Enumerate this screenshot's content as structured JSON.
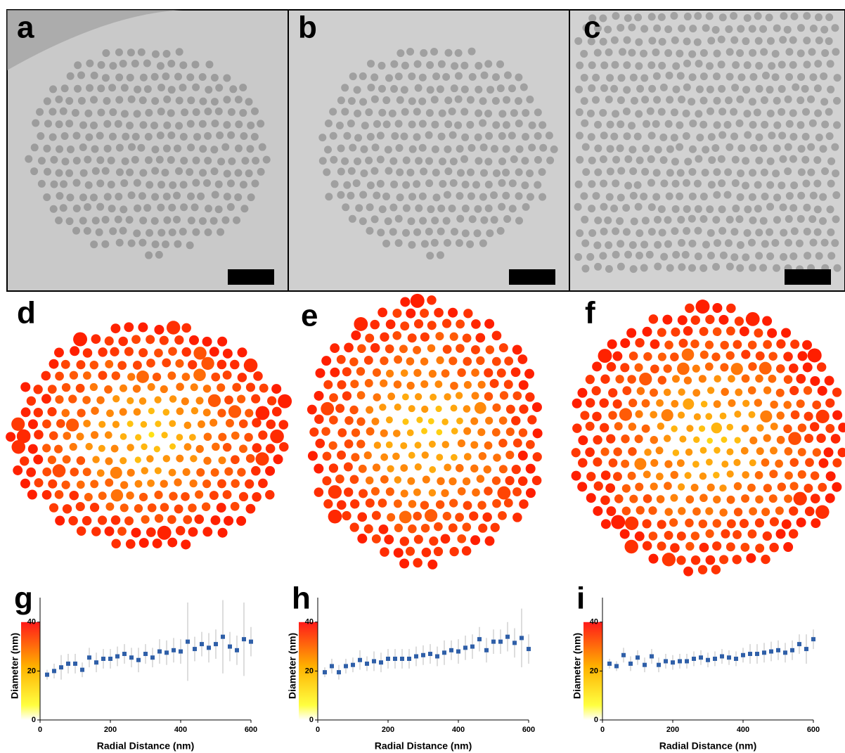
{
  "panel_labels": [
    "a",
    "b",
    "c",
    "d",
    "e",
    "f"
  ],
  "chart_data": [
    {
      "type": "scatter",
      "label": "g",
      "xlabel": "Radial Distance (nm)",
      "ylabel": "Diameter (nm)",
      "x": [
        20,
        40,
        60,
        80,
        100,
        120,
        140,
        160,
        180,
        200,
        220,
        240,
        260,
        280,
        300,
        320,
        340,
        360,
        380,
        400,
        420,
        440,
        460,
        480,
        500,
        520,
        540,
        560,
        580,
        600
      ],
      "values": [
        18.5,
        20,
        21.5,
        23,
        23,
        20.5,
        25.5,
        23.5,
        25,
        25,
        26,
        27,
        25.5,
        24.5,
        27,
        25.5,
        28,
        27.5,
        28.5,
        28,
        32,
        29,
        31,
        29.5,
        31,
        34,
        30,
        28.5,
        33,
        32
      ],
      "errors": [
        2,
        3,
        5,
        4,
        4,
        3,
        4,
        4,
        4,
        4,
        4,
        4,
        4,
        5,
        4,
        4,
        5,
        5,
        5,
        5,
        16,
        5,
        5,
        6,
        6,
        15,
        6,
        6,
        15,
        6
      ],
      "color": "#2f5fa8",
      "xlim": [
        0,
        600
      ],
      "ylim": [
        0,
        50
      ],
      "xticks": [
        0,
        200,
        400,
        600
      ],
      "yticks": [
        0,
        20,
        40
      ]
    },
    {
      "type": "scatter",
      "label": "h",
      "xlabel": "Radial Distance (nm)",
      "ylabel": "Diameter (nm)",
      "x": [
        20,
        40,
        60,
        80,
        100,
        120,
        140,
        160,
        180,
        200,
        220,
        240,
        260,
        280,
        300,
        320,
        340,
        360,
        380,
        400,
        420,
        440,
        460,
        480,
        500,
        520,
        540,
        560,
        580,
        600
      ],
      "values": [
        19.5,
        22,
        19.5,
        22,
        22.5,
        24.5,
        23,
        24,
        23.5,
        25,
        25,
        25,
        25,
        26,
        26.5,
        27,
        26,
        27.5,
        28.5,
        28,
        29.5,
        30,
        33,
        28.5,
        32,
        32,
        34,
        31.5,
        33.5,
        29
      ],
      "errors": [
        2,
        3,
        3,
        3,
        3,
        4,
        3,
        4,
        4,
        4,
        4,
        4,
        4,
        4,
        4,
        4,
        4,
        5,
        4,
        5,
        5,
        5,
        5,
        5,
        5,
        5,
        6,
        6,
        12,
        6
      ],
      "color": "#2f5fa8",
      "xlim": [
        0,
        600
      ],
      "ylim": [
        0,
        50
      ],
      "xticks": [
        0,
        200,
        400,
        600
      ],
      "yticks": [
        0,
        20,
        40
      ]
    },
    {
      "type": "scatter",
      "label": "i",
      "xlabel": "Radial Distance (nm)",
      "ylabel": "Diameter (nm)",
      "x": [
        20,
        40,
        60,
        80,
        100,
        120,
        140,
        160,
        180,
        200,
        220,
        240,
        260,
        280,
        300,
        320,
        340,
        360,
        380,
        400,
        420,
        440,
        460,
        480,
        500,
        520,
        540,
        560,
        580,
        600
      ],
      "values": [
        23,
        22,
        26.5,
        23,
        25.5,
        22.5,
        26,
        22.5,
        24,
        23.5,
        24,
        24,
        25,
        25.5,
        24.5,
        25,
        26,
        25.5,
        25,
        26.5,
        27,
        27,
        27.5,
        28,
        28.5,
        27.5,
        28.5,
        31,
        29,
        33
      ],
      "errors": [
        2,
        2,
        3,
        3,
        3,
        3,
        3,
        3,
        3,
        3,
        3,
        3,
        3,
        3,
        3,
        3,
        3,
        3,
        3,
        3,
        4,
        4,
        4,
        4,
        4,
        4,
        4,
        4,
        6,
        4
      ],
      "color": "#2f5fa8",
      "xlim": [
        0,
        600
      ],
      "ylim": [
        0,
        50
      ],
      "xticks": [
        0,
        200,
        400,
        600
      ],
      "yticks": [
        0,
        20,
        40
      ]
    }
  ]
}
